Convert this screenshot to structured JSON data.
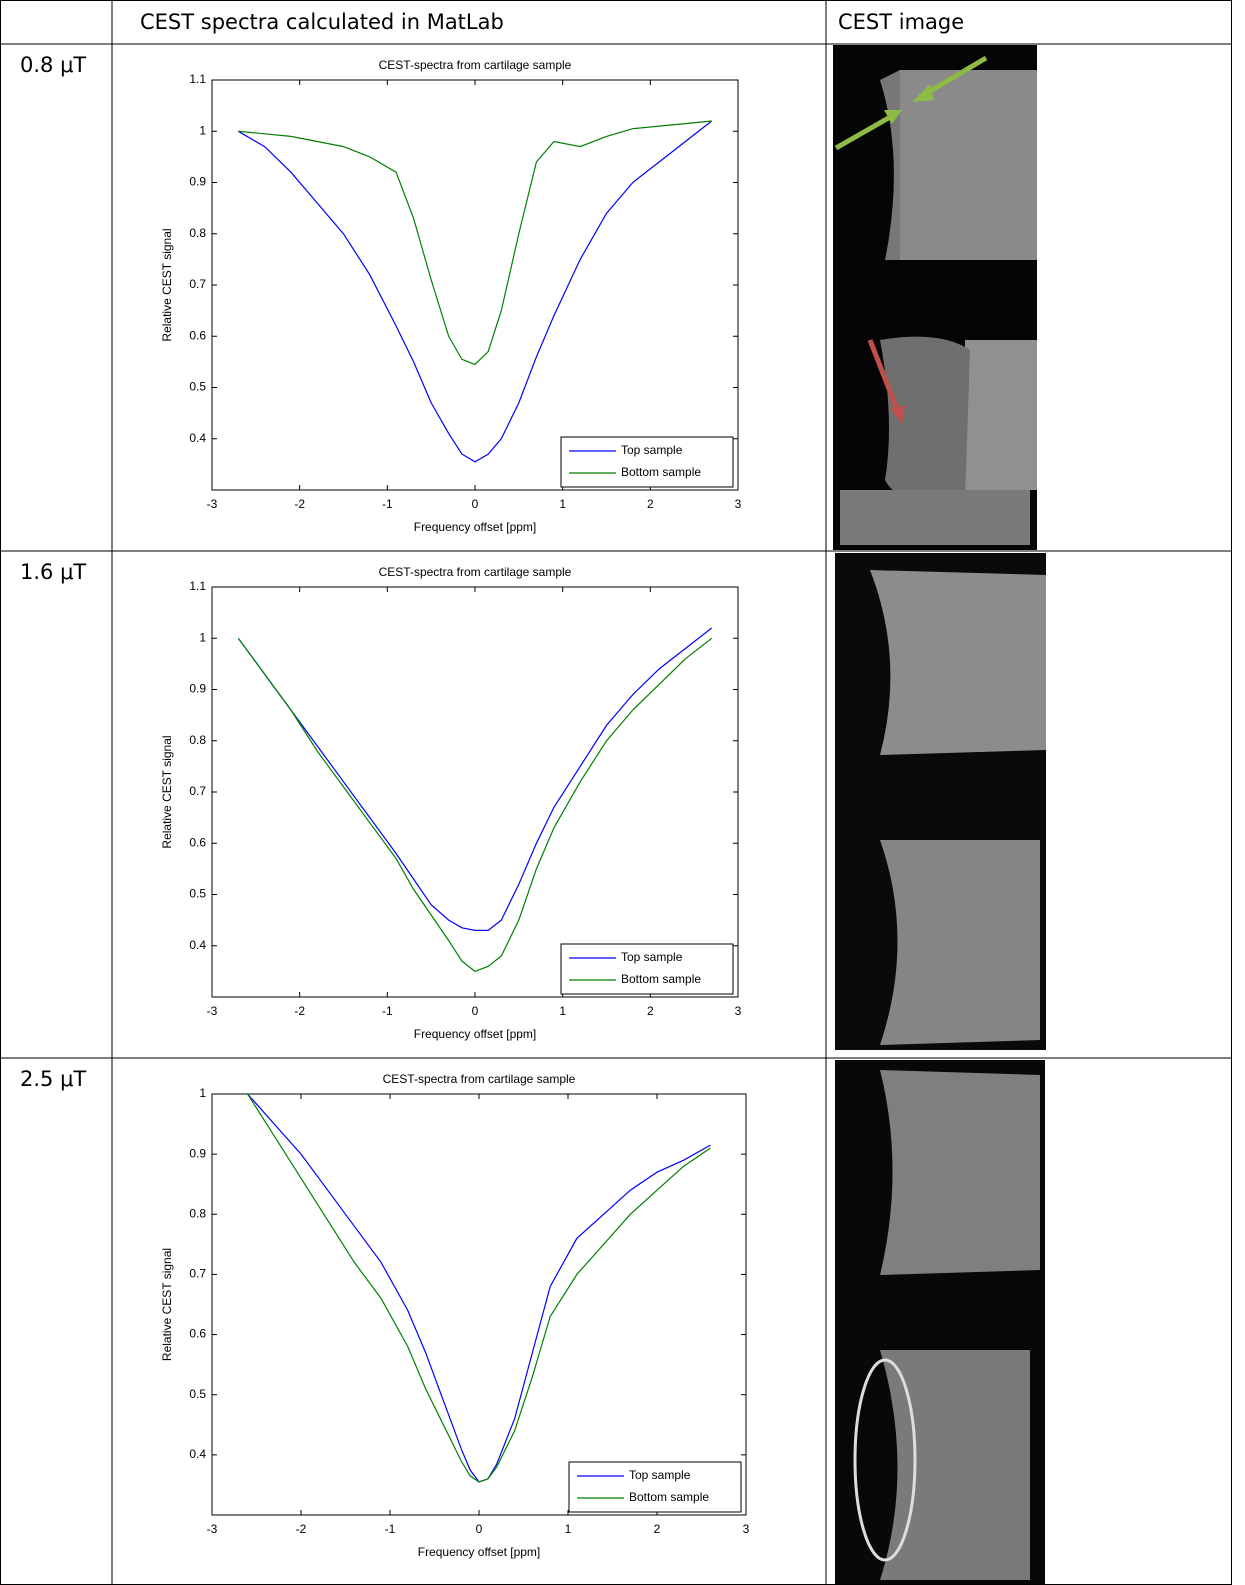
{
  "table": {
    "headers": [
      "CEST spectra calculated in MatLab",
      "CEST image"
    ],
    "rows": [
      "0.8 μT",
      "1.6 μT",
      "2.5 μT"
    ]
  },
  "chart_data": [
    {
      "type": "line",
      "title": "CEST-spectra from cartilage sample",
      "xlabel": "Frequency offset [ppm]",
      "ylabel": "Relative CEST signal",
      "x": [
        -2.7,
        -2.4,
        -2.1,
        -1.8,
        -1.5,
        -1.2,
        -0.9,
        -0.7,
        -0.5,
        -0.3,
        -0.15,
        0,
        0.15,
        0.3,
        0.5,
        0.7,
        0.9,
        1.2,
        1.5,
        1.8,
        2.1,
        2.4,
        2.7
      ],
      "series": [
        {
          "name": "Top sample",
          "color": "#0000ff",
          "values": [
            1.0,
            0.97,
            0.92,
            0.86,
            0.8,
            0.72,
            0.62,
            0.55,
            0.47,
            0.41,
            0.37,
            0.355,
            0.37,
            0.4,
            0.47,
            0.56,
            0.64,
            0.75,
            0.84,
            0.9,
            0.94,
            0.98,
            1.02
          ]
        },
        {
          "name": "Bottom sample",
          "color": "#008000",
          "values": [
            1.0,
            0.995,
            0.99,
            0.98,
            0.97,
            0.95,
            0.92,
            0.83,
            0.71,
            0.6,
            0.555,
            0.545,
            0.57,
            0.65,
            0.8,
            0.94,
            0.98,
            0.97,
            0.99,
            1.005,
            1.01,
            1.015,
            1.02
          ]
        }
      ],
      "xlim": [
        -3,
        3
      ],
      "ylim": [
        0.3,
        1.1
      ],
      "xticks": [
        -3,
        -2,
        -1,
        0,
        1,
        2,
        3
      ],
      "yticks": [
        0.4,
        0.5,
        0.6,
        0.7,
        0.8,
        0.9,
        1,
        1.1
      ],
      "legend": "lower right"
    },
    {
      "type": "line",
      "title": "CEST-spectra from cartilage sample",
      "xlabel": "Frequency offset [ppm]",
      "ylabel": "Relative CEST signal",
      "x": [
        -2.7,
        -2.4,
        -2.1,
        -1.8,
        -1.5,
        -1.2,
        -0.9,
        -0.7,
        -0.5,
        -0.3,
        -0.15,
        0,
        0.15,
        0.3,
        0.5,
        0.7,
        0.9,
        1.2,
        1.5,
        1.8,
        2.1,
        2.4,
        2.7
      ],
      "series": [
        {
          "name": "Top sample",
          "color": "#0000ff",
          "values": [
            1.0,
            0.93,
            0.86,
            0.79,
            0.72,
            0.65,
            0.58,
            0.53,
            0.48,
            0.45,
            0.435,
            0.43,
            0.43,
            0.45,
            0.52,
            0.6,
            0.67,
            0.75,
            0.83,
            0.89,
            0.94,
            0.98,
            1.02
          ]
        },
        {
          "name": "Bottom sample",
          "color": "#008000",
          "values": [
            1.0,
            0.93,
            0.86,
            0.78,
            0.71,
            0.64,
            0.57,
            0.51,
            0.46,
            0.41,
            0.37,
            0.35,
            0.36,
            0.38,
            0.45,
            0.55,
            0.63,
            0.72,
            0.8,
            0.86,
            0.91,
            0.96,
            1.0
          ]
        }
      ],
      "xlim": [
        -3,
        3
      ],
      "ylim": [
        0.3,
        1.1
      ],
      "xticks": [
        -3,
        -2,
        -1,
        0,
        1,
        2,
        3
      ],
      "yticks": [
        0.4,
        0.5,
        0.6,
        0.7,
        0.8,
        0.9,
        1,
        1.1
      ],
      "legend": "lower right"
    },
    {
      "type": "line",
      "title": "CEST-spectra from cartilage sample",
      "xlabel": "Frequency offset [ppm]",
      "ylabel": "Relative CEST signal",
      "x": [
        -2.6,
        -2.3,
        -2.0,
        -1.7,
        -1.4,
        -1.1,
        -0.8,
        -0.6,
        -0.4,
        -0.2,
        -0.1,
        0,
        0.1,
        0.2,
        0.4,
        0.6,
        0.8,
        1.1,
        1.4,
        1.7,
        2.0,
        2.3,
        2.6
      ],
      "series": [
        {
          "name": "Top sample",
          "color": "#0000ff",
          "values": [
            1.0,
            0.95,
            0.9,
            0.84,
            0.78,
            0.72,
            0.64,
            0.57,
            0.49,
            0.41,
            0.375,
            0.355,
            0.36,
            0.385,
            0.46,
            0.57,
            0.68,
            0.76,
            0.8,
            0.84,
            0.87,
            0.89,
            0.915
          ]
        },
        {
          "name": "Bottom sample",
          "color": "#008000",
          "values": [
            1.0,
            0.93,
            0.86,
            0.79,
            0.72,
            0.66,
            0.58,
            0.51,
            0.45,
            0.39,
            0.365,
            0.355,
            0.36,
            0.38,
            0.44,
            0.53,
            0.63,
            0.7,
            0.75,
            0.8,
            0.84,
            0.88,
            0.91
          ]
        }
      ],
      "xlim": [
        -3,
        3
      ],
      "ylim": [
        0.3,
        1
      ],
      "xticks": [
        -3,
        -2,
        -1,
        0,
        1,
        2,
        3
      ],
      "yticks": [
        0.4,
        0.5,
        0.6,
        0.7,
        0.8,
        0.9,
        1
      ],
      "legend": "lower right"
    }
  ]
}
